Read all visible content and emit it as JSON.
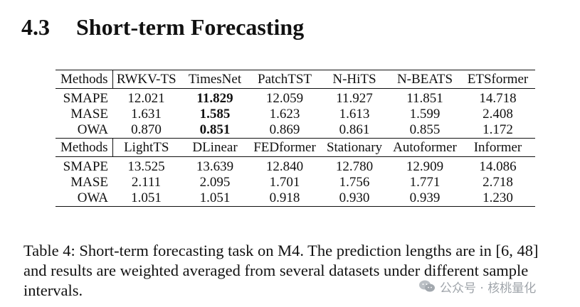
{
  "section": {
    "number": "4.3",
    "title": "Short-term Forecasting"
  },
  "table": {
    "block1": {
      "methods_label": "Methods",
      "models": [
        "RWKV-TS",
        "TimesNet",
        "PatchTST",
        "N-HiTS",
        "N-BEATS",
        "ETSformer"
      ],
      "rows": [
        {
          "metric": "SMAPE",
          "values": [
            "12.021",
            "11.829",
            "12.059",
            "11.927",
            "11.851",
            "14.718"
          ],
          "bold_index": 1
        },
        {
          "metric": "MASE",
          "values": [
            "1.631",
            "1.585",
            "1.623",
            "1.613",
            "1.599",
            "2.408"
          ],
          "bold_index": 1
        },
        {
          "metric": "OWA",
          "values": [
            "0.870",
            "0.851",
            "0.869",
            "0.861",
            "0.855",
            "1.172"
          ],
          "bold_index": 1
        }
      ]
    },
    "block2": {
      "methods_label": "Methods",
      "models": [
        "LightTS",
        "DLinear",
        "FEDformer",
        "Stationary",
        "Autoformer",
        "Informer"
      ],
      "rows": [
        {
          "metric": "SMAPE",
          "values": [
            "13.525",
            "13.639",
            "12.840",
            "12.780",
            "12.909",
            "14.086"
          ]
        },
        {
          "metric": "MASE",
          "values": [
            "2.111",
            "2.095",
            "1.701",
            "1.756",
            "1.771",
            "2.718"
          ]
        },
        {
          "metric": "OWA",
          "values": [
            "1.051",
            "1.051",
            "0.918",
            "0.930",
            "0.939",
            "1.230"
          ]
        }
      ]
    }
  },
  "caption": {
    "text": "Table 4: Short-term forecasting task on M4. The prediction lengths are in [6, 48] and results are weighted averaged from several datasets under different sample intervals."
  },
  "watermark": {
    "text": "公众号 · 核桃量化"
  }
}
